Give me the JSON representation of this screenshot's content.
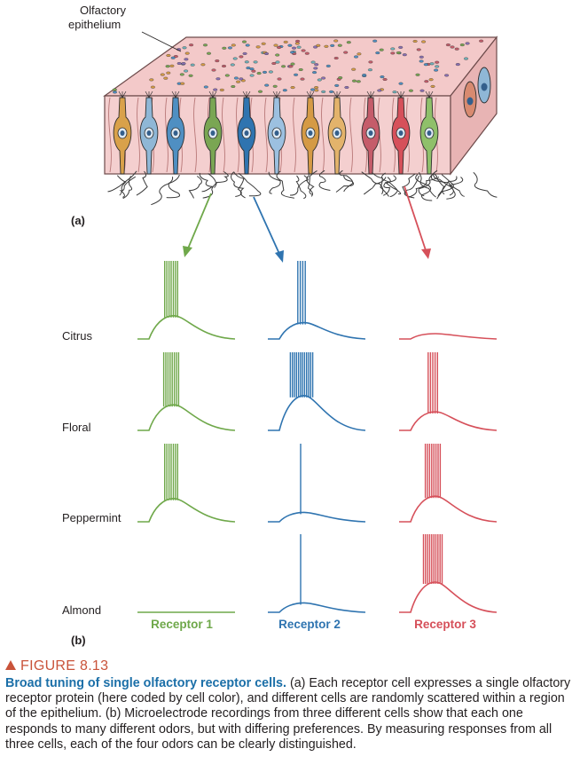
{
  "figure": {
    "epithelium_label_line1": "Olfactory",
    "epithelium_label_line2": "epithelium",
    "panel_a_label": "(a)",
    "panel_b_label": "(b)",
    "odors": [
      "Citrus",
      "Floral",
      "Peppermint",
      "Almond"
    ],
    "receptors": [
      "Receptor 1",
      "Receptor 2",
      "Receptor 3"
    ],
    "receptor_colors": [
      "#6fa84a",
      "#2f74b0",
      "#d6505a"
    ],
    "spike_counts": [
      [
        7,
        4,
        0
      ],
      [
        8,
        12,
        5
      ],
      [
        7,
        1,
        8
      ],
      [
        0,
        1,
        10
      ]
    ]
  },
  "caption": {
    "figure_number": "FIGURE 8.13",
    "title": "Broad tuning of single olfactory receptor cells.",
    "body": " (a) Each receptor cell expresses a single olfactory receptor protein (here coded by cell color), and different cells are randomly scattered within a region of the epithelium. (b) Microelectrode recordings from three different cells show that each one responds to many different odors, but with differing preferences. By measuring responses from all three cells, each of the four odors can be clearly distinguished."
  }
}
